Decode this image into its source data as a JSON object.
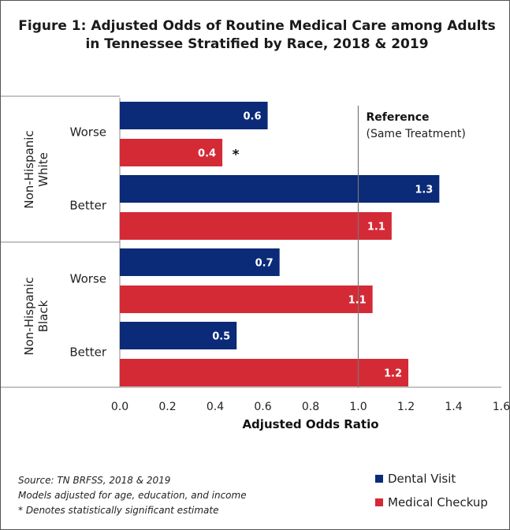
{
  "title": "Figure 1: Adjusted Odds of Routine Medical Care among Adults in Tennessee Stratified by Race, 2018 & 2019",
  "colors": {
    "dental": "#0b2a78",
    "medical": "#d42a36",
    "reference_line": "#777777",
    "axis": "#888888"
  },
  "chart_data": {
    "type": "bar",
    "orientation": "horizontal",
    "groups": [
      {
        "name": "Non-Hispanic White",
        "categories": [
          {
            "label": "Worse",
            "dental": 0.62,
            "medical": 0.43,
            "dental_label": "0.6",
            "medical_label": "0.4",
            "medical_annotation": "*"
          },
          {
            "label": "Better",
            "dental": 1.34,
            "medical": 1.14,
            "dental_label": "1.3",
            "medical_label": "1.1"
          }
        ]
      },
      {
        "name": "Non-Hispanic Black",
        "categories": [
          {
            "label": "Worse",
            "dental": 0.67,
            "medical": 1.06,
            "dental_label": "0.7",
            "medical_label": "1.1"
          },
          {
            "label": "Better",
            "dental": 0.49,
            "medical": 1.21,
            "dental_label": "0.5",
            "medical_label": "1.2"
          }
        ]
      }
    ],
    "series": [
      {
        "name": "Dental Visit",
        "key": "dental"
      },
      {
        "name": "Medical Checkup",
        "key": "medical"
      }
    ],
    "xlabel": "Adjusted Odds Ratio",
    "xlim": [
      0,
      1.6
    ],
    "xticks": [
      "0.0",
      "0.2",
      "0.4",
      "0.6",
      "0.8",
      "1.0",
      "1.2",
      "1.4",
      "1.6"
    ],
    "reference": {
      "value": 1.0,
      "label": "Reference",
      "sublabel": "(Same Treatment)"
    }
  },
  "footnotes": [
    "Source: TN BRFSS, 2018 & 2019",
    "Models adjusted for age, education, and income",
    "* Denotes statistically significant estimate"
  ]
}
